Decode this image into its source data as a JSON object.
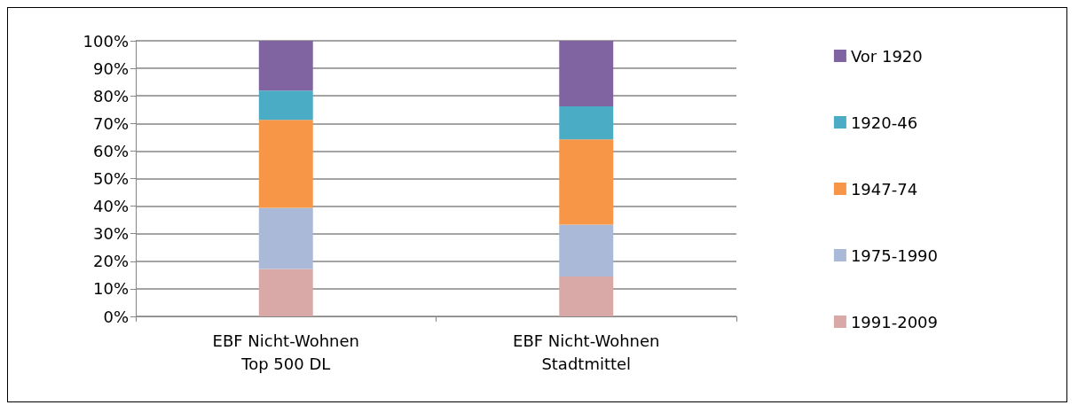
{
  "chart_data": {
    "type": "bar",
    "stacked": true,
    "categories": [
      "EBF Nicht-Wohnen\nTop 500 DL",
      "EBF Nicht-Wohnen\nStadtmittel"
    ],
    "series": [
      {
        "name": "1991-2009",
        "color": "#d9a9a8",
        "values": [
          17.2,
          14.5
        ]
      },
      {
        "name": "1975-1990",
        "color": "#aab9d7",
        "values": [
          22.2,
          18.8
        ]
      },
      {
        "name": "1947-74",
        "color": "#f79646",
        "values": [
          31.9,
          30.9
        ]
      },
      {
        "name": "1920-46",
        "color": "#4bacc6",
        "values": [
          10.6,
          12.0
        ]
      },
      {
        "name": "Vor 1920",
        "color": "#8064a2",
        "values": [
          18.1,
          23.8
        ]
      }
    ],
    "ylim": [
      0,
      100
    ],
    "yticks": [
      {
        "value": 0,
        "label": "0%"
      },
      {
        "value": 10,
        "label": "10%"
      },
      {
        "value": 20,
        "label": "20%"
      },
      {
        "value": 30,
        "label": "30%"
      },
      {
        "value": 40,
        "label": "40%"
      },
      {
        "value": 50,
        "label": "50%"
      },
      {
        "value": 60,
        "label": "60%"
      },
      {
        "value": 70,
        "label": "70%"
      },
      {
        "value": 80,
        "label": "80%"
      },
      {
        "value": 90,
        "label": "90%"
      },
      {
        "value": 100,
        "label": "100%"
      }
    ],
    "grid": "y",
    "legend": "right"
  }
}
